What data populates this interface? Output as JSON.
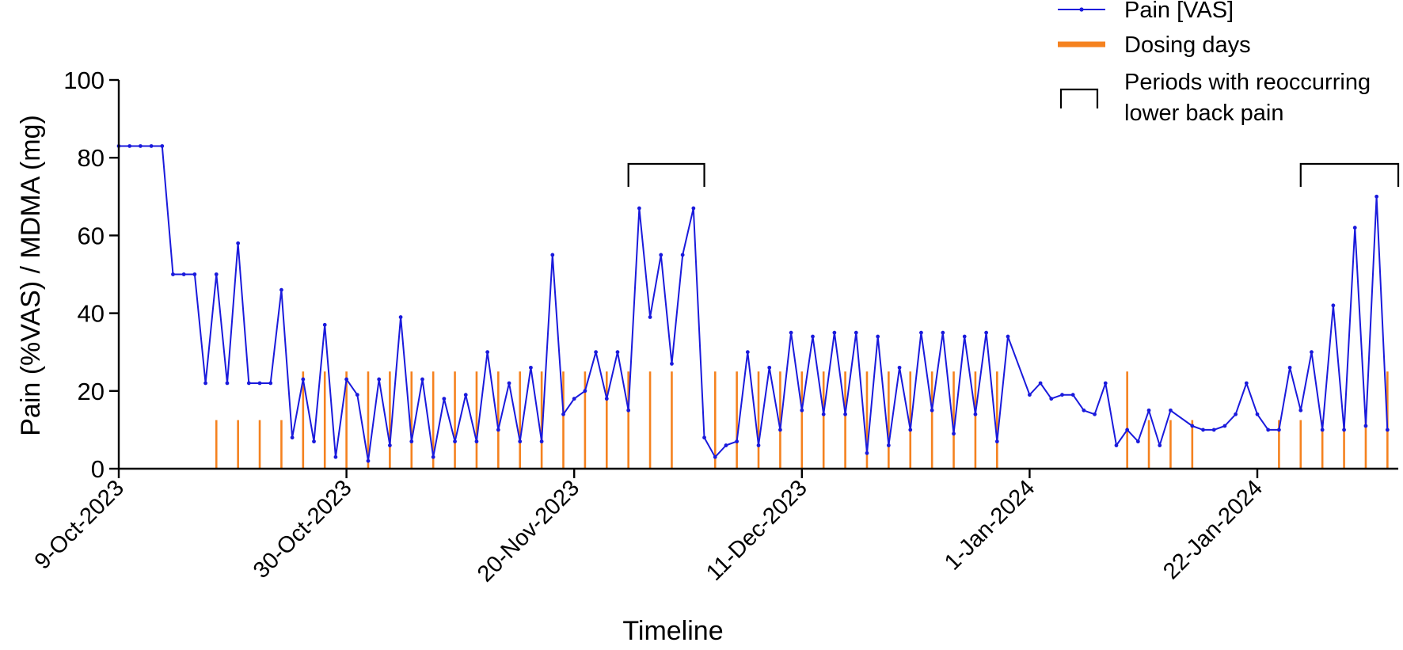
{
  "chart_data": {
    "type": "line",
    "xlabel": "Timeline",
    "ylabel": "Pain (%VAS) /  MDMA (mg)",
    "ylim": [
      0,
      100
    ],
    "yticks": [
      0,
      20,
      40,
      60,
      80,
      100
    ],
    "xlim": [
      "2023-10-09",
      "2024-02-01"
    ],
    "xticks": [
      {
        "date": "2023-10-09",
        "label": "9-Oct-2023"
      },
      {
        "date": "2023-10-30",
        "label": "30-Oct-2023"
      },
      {
        "date": "2023-11-20",
        "label": "20-Nov-2023"
      },
      {
        "date": "2023-12-11",
        "label": "11-Dec-2023"
      },
      {
        "date": "2024-01-01",
        "label": "1-Jan-2024"
      },
      {
        "date": "2024-01-22",
        "label": "22-Jan-2024"
      }
    ],
    "legend_position": "top-right",
    "colors": {
      "pain": "#1a1adc",
      "dosing": "#f5821f",
      "brackets": "#000000"
    },
    "series": [
      {
        "name": "Pain [VAS]",
        "type": "line",
        "points": [
          [
            "2023-10-09",
            83
          ],
          [
            "2023-10-10",
            83
          ],
          [
            "2023-10-11",
            83
          ],
          [
            "2023-10-12",
            83
          ],
          [
            "2023-10-13",
            83
          ],
          [
            "2023-10-14",
            50
          ],
          [
            "2023-10-15",
            50
          ],
          [
            "2023-10-16",
            50
          ],
          [
            "2023-10-17",
            22
          ],
          [
            "2023-10-18",
            50
          ],
          [
            "2023-10-19",
            22
          ],
          [
            "2023-10-20",
            58
          ],
          [
            "2023-10-21",
            22
          ],
          [
            "2023-10-22",
            22
          ],
          [
            "2023-10-23",
            22
          ],
          [
            "2023-10-24",
            46
          ],
          [
            "2023-10-25",
            8
          ],
          [
            "2023-10-26",
            23
          ],
          [
            "2023-10-27",
            7
          ],
          [
            "2023-10-28",
            37
          ],
          [
            "2023-10-29",
            3
          ],
          [
            "2023-10-30",
            23
          ],
          [
            "2023-10-31",
            19
          ],
          [
            "2023-11-01",
            2
          ],
          [
            "2023-11-02",
            23
          ],
          [
            "2023-11-03",
            6
          ],
          [
            "2023-11-04",
            39
          ],
          [
            "2023-11-05",
            7
          ],
          [
            "2023-11-06",
            23
          ],
          [
            "2023-11-07",
            3
          ],
          [
            "2023-11-08",
            18
          ],
          [
            "2023-11-09",
            7
          ],
          [
            "2023-11-10",
            19
          ],
          [
            "2023-11-11",
            7
          ],
          [
            "2023-11-12",
            30
          ],
          [
            "2023-11-13",
            10
          ],
          [
            "2023-11-14",
            22
          ],
          [
            "2023-11-15",
            7
          ],
          [
            "2023-11-16",
            26
          ],
          [
            "2023-11-17",
            7
          ],
          [
            "2023-11-18",
            55
          ],
          [
            "2023-11-19",
            14
          ],
          [
            "2023-11-20",
            18
          ],
          [
            "2023-11-21",
            20
          ],
          [
            "2023-11-22",
            30
          ],
          [
            "2023-11-23",
            18
          ],
          [
            "2023-11-24",
            30
          ],
          [
            "2023-11-25",
            15
          ],
          [
            "2023-11-26",
            67
          ],
          [
            "2023-11-27",
            39
          ],
          [
            "2023-11-28",
            55
          ],
          [
            "2023-11-29",
            27
          ],
          [
            "2023-11-30",
            55
          ],
          [
            "2023-12-01",
            67
          ],
          [
            "2023-12-02",
            8
          ],
          [
            "2023-12-03",
            3
          ],
          [
            "2023-12-04",
            6
          ],
          [
            "2023-12-05",
            7
          ],
          [
            "2023-12-06",
            30
          ],
          [
            "2023-12-07",
            6
          ],
          [
            "2023-12-08",
            26
          ],
          [
            "2023-12-09",
            10
          ],
          [
            "2023-12-10",
            35
          ],
          [
            "2023-12-11",
            15
          ],
          [
            "2023-12-12",
            34
          ],
          [
            "2023-12-13",
            14
          ],
          [
            "2023-12-14",
            35
          ],
          [
            "2023-12-15",
            14
          ],
          [
            "2023-12-16",
            35
          ],
          [
            "2023-12-17",
            4
          ],
          [
            "2023-12-18",
            34
          ],
          [
            "2023-12-19",
            6
          ],
          [
            "2023-12-20",
            26
          ],
          [
            "2023-12-21",
            10
          ],
          [
            "2023-12-22",
            35
          ],
          [
            "2023-12-23",
            15
          ],
          [
            "2023-12-24",
            35
          ],
          [
            "2023-12-25",
            9
          ],
          [
            "2023-12-26",
            34
          ],
          [
            "2023-12-27",
            14
          ],
          [
            "2023-12-28",
            35
          ],
          [
            "2023-12-29",
            7
          ],
          [
            "2023-12-30",
            34
          ],
          [
            "2024-01-01",
            19
          ],
          [
            "2024-01-02",
            22
          ],
          [
            "2024-01-03",
            18
          ],
          [
            "2024-01-04",
            19
          ],
          [
            "2024-01-05",
            19
          ],
          [
            "2024-01-06",
            15
          ],
          [
            "2024-01-07",
            14
          ],
          [
            "2024-01-08",
            22
          ],
          [
            "2024-01-09",
            6
          ],
          [
            "2024-01-10",
            10
          ],
          [
            "2024-01-11",
            7
          ],
          [
            "2024-01-12",
            15
          ],
          [
            "2024-01-13",
            6
          ],
          [
            "2024-01-14",
            15
          ],
          [
            "2024-01-16",
            11
          ],
          [
            "2024-01-17",
            10
          ],
          [
            "2024-01-18",
            10
          ],
          [
            "2024-01-19",
            11
          ],
          [
            "2024-01-20",
            14
          ],
          [
            "2024-01-21",
            22
          ],
          [
            "2024-01-22",
            14
          ],
          [
            "2024-01-23",
            10
          ],
          [
            "2024-01-24",
            10
          ],
          [
            "2024-01-25",
            26
          ],
          [
            "2024-01-26",
            15
          ],
          [
            "2024-01-27",
            30
          ],
          [
            "2024-01-28",
            10
          ],
          [
            "2024-01-29",
            42
          ],
          [
            "2024-01-30",
            10
          ],
          [
            "2024-01-31",
            62
          ],
          [
            "2024-02-01",
            11
          ],
          [
            "2024-02-02",
            70
          ],
          [
            "2024-02-03",
            10
          ]
        ]
      },
      {
        "name": "Dosing days",
        "type": "bar",
        "points": [
          [
            "2023-10-18",
            12.5
          ],
          [
            "2023-10-20",
            12.5
          ],
          [
            "2023-10-22",
            12.5
          ],
          [
            "2023-10-24",
            12.5
          ],
          [
            "2023-10-26",
            25
          ],
          [
            "2023-10-28",
            25
          ],
          [
            "2023-10-30",
            25
          ],
          [
            "2023-11-01",
            25
          ],
          [
            "2023-11-03",
            25
          ],
          [
            "2023-11-05",
            25
          ],
          [
            "2023-11-07",
            25
          ],
          [
            "2023-11-09",
            25
          ],
          [
            "2023-11-11",
            25
          ],
          [
            "2023-11-13",
            25
          ],
          [
            "2023-11-15",
            25
          ],
          [
            "2023-11-17",
            25
          ],
          [
            "2023-11-19",
            25
          ],
          [
            "2023-11-21",
            25
          ],
          [
            "2023-11-23",
            25
          ],
          [
            "2023-11-25",
            25
          ],
          [
            "2023-11-27",
            25
          ],
          [
            "2023-11-29",
            25
          ],
          [
            "2023-12-03",
            25
          ],
          [
            "2023-12-05",
            25
          ],
          [
            "2023-12-07",
            25
          ],
          [
            "2023-12-09",
            25
          ],
          [
            "2023-12-11",
            25
          ],
          [
            "2023-12-13",
            25
          ],
          [
            "2023-12-15",
            25
          ],
          [
            "2023-12-17",
            25
          ],
          [
            "2023-12-19",
            25
          ],
          [
            "2023-12-21",
            25
          ],
          [
            "2023-12-23",
            25
          ],
          [
            "2023-12-25",
            25
          ],
          [
            "2023-12-27",
            25
          ],
          [
            "2023-12-29",
            25
          ],
          [
            "2024-01-10",
            25
          ],
          [
            "2024-01-12",
            12.5
          ],
          [
            "2024-01-14",
            12.5
          ],
          [
            "2024-01-16",
            12.5
          ],
          [
            "2024-01-24",
            12.5
          ],
          [
            "2024-01-26",
            12.5
          ],
          [
            "2024-01-28",
            12.5
          ],
          [
            "2024-01-30",
            12.5
          ],
          [
            "2024-02-01",
            12.5
          ],
          [
            "2024-02-03",
            25
          ]
        ]
      }
    ],
    "brackets": [
      {
        "start": "2023-11-25",
        "end": "2023-12-02"
      },
      {
        "start": "2024-01-26",
        "end": "2024-02-04"
      }
    ],
    "legend": [
      {
        "label": "Pain [VAS]",
        "kind": "line"
      },
      {
        "label": "Dosing days",
        "kind": "bar"
      },
      {
        "label": "Periods with reoccurring",
        "label2": "lower back pain",
        "kind": "bracket"
      }
    ]
  }
}
